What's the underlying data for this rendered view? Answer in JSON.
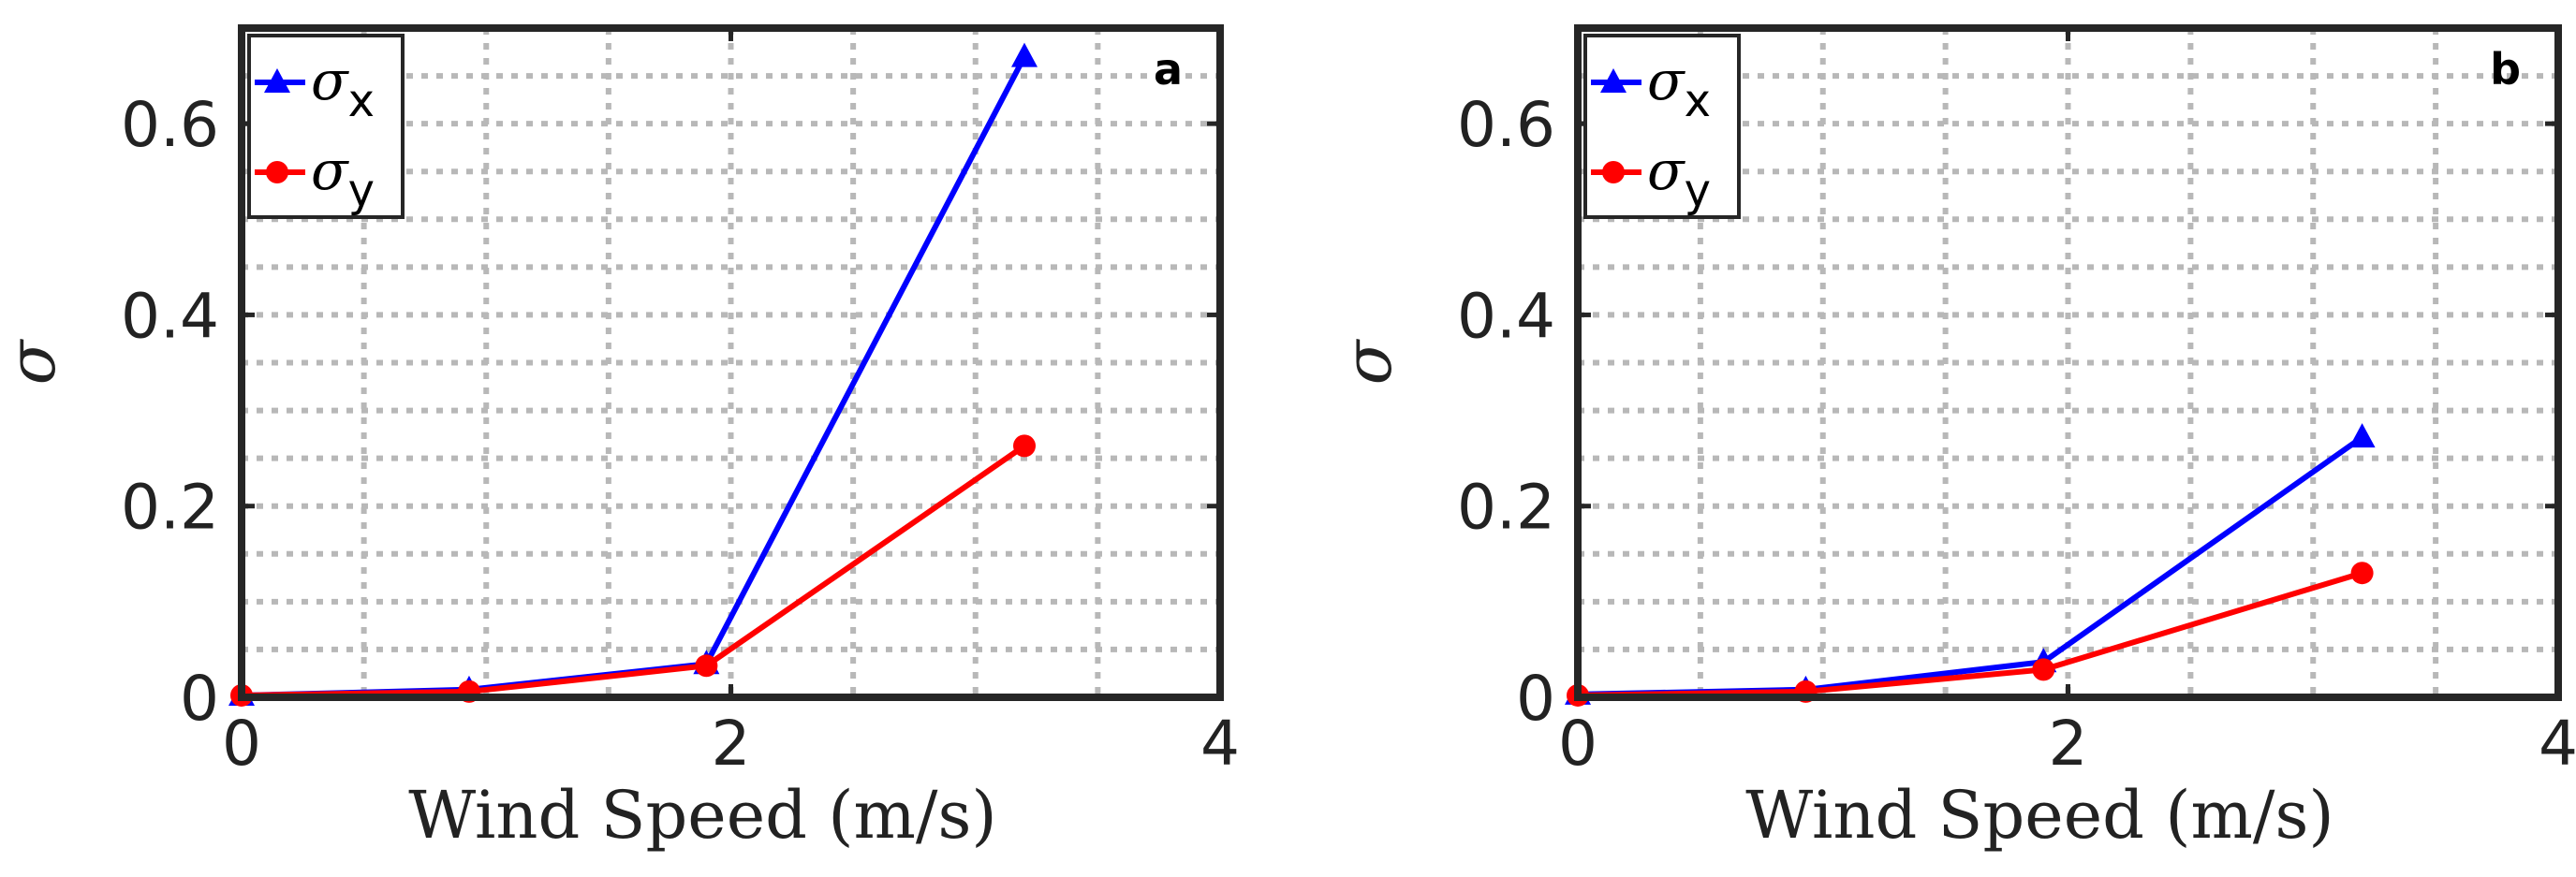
{
  "chart_data": [
    {
      "type": "line",
      "panel_label": "a",
      "xlabel": "Wind Speed (m/s)",
      "ylabel": "σ",
      "xlim": [
        0,
        4
      ],
      "ylim": [
        0,
        0.7
      ],
      "x_ticks": [
        "0",
        "2",
        "4"
      ],
      "y_ticks": [
        "0",
        "0.2",
        "0.4",
        "0.6"
      ],
      "grid": true,
      "legend_position": "top-left",
      "series": [
        {
          "name": "σ",
          "subscript": "x",
          "color": "#0000ff",
          "marker": "triangle",
          "x": [
            0,
            0.93,
            1.9,
            3.2
          ],
          "y": [
            0.002,
            0.008,
            0.035,
            0.67
          ]
        },
        {
          "name": "σ",
          "subscript": "y",
          "color": "#ff0000",
          "marker": "circle",
          "x": [
            0,
            0.93,
            1.9,
            3.2
          ],
          "y": [
            0.002,
            0.006,
            0.033,
            0.263
          ]
        }
      ]
    },
    {
      "type": "line",
      "panel_label": "b",
      "xlabel": "Wind Speed (m/s)",
      "ylabel": "σ",
      "xlim": [
        0,
        4
      ],
      "ylim": [
        0,
        0.7
      ],
      "x_ticks": [
        "0",
        "2",
        "4"
      ],
      "y_ticks": [
        "0",
        "0.2",
        "0.4",
        "0.6"
      ],
      "grid": true,
      "legend_position": "top-left",
      "series": [
        {
          "name": "σ",
          "subscript": "x",
          "color": "#0000ff",
          "marker": "triangle",
          "x": [
            0,
            0.93,
            1.9,
            3.2
          ],
          "y": [
            0.003,
            0.008,
            0.037,
            0.272
          ]
        },
        {
          "name": "σ",
          "subscript": "y",
          "color": "#ff0000",
          "marker": "circle",
          "x": [
            0,
            0.93,
            1.9,
            3.2
          ],
          "y": [
            0.002,
            0.006,
            0.029,
            0.13
          ]
        }
      ]
    }
  ]
}
